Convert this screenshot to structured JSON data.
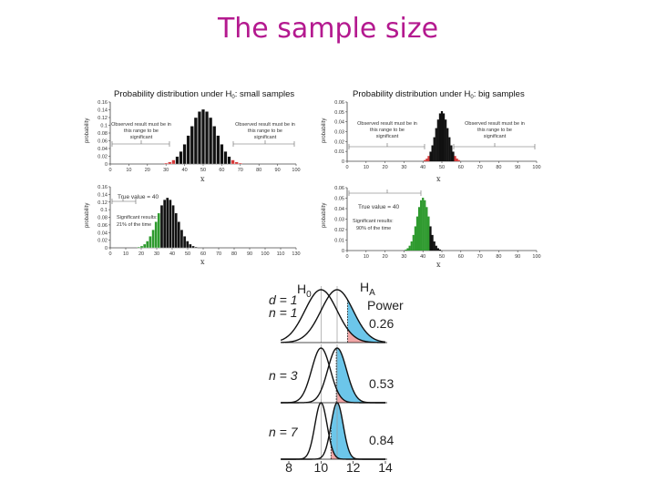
{
  "slide": {
    "title": "The sample size"
  },
  "panels": {
    "small": {
      "title": "Probability distribution under H",
      "title_sub": "0",
      "title_tail": ": small samples",
      "ylabel": "probability",
      "xlabel": "x",
      "yticks": [
        "0.16",
        "0.14",
        "0.12",
        "0.1",
        "0.08",
        "0.06",
        "0.04",
        "0.02",
        "0"
      ],
      "xticks": [
        "0",
        "10",
        "20",
        "30",
        "40",
        "50",
        "60",
        "70",
        "80",
        "90",
        "100"
      ],
      "left_note": [
        "Observed result must be in",
        "this range to be",
        "significant"
      ],
      "right_note": [
        "Observed result must be in",
        "this range to be",
        "significant"
      ]
    },
    "big": {
      "title": "Probability distribution under H",
      "title_sub": "0",
      "title_tail": ": big samples",
      "ylabel": "probability",
      "xlabel": "x",
      "yticks": [
        "0.06",
        "0.05",
        "0.04",
        "0.03",
        "0.02",
        "0.01",
        "0"
      ],
      "xticks": [
        "0",
        "10",
        "20",
        "30",
        "40",
        "50",
        "60",
        "70",
        "80",
        "90",
        "100"
      ],
      "left_note": [
        "Observed result must be in",
        "this range to be",
        "significant"
      ],
      "right_note": [
        "Observed result must be in",
        "this range to be",
        "significant"
      ]
    },
    "small_true": {
      "ylabel": "probability",
      "xlabel": "x",
      "yticks": [
        "0.16",
        "0.14",
        "0.12",
        "0.1",
        "0.08",
        "0.06",
        "0.04",
        "0.02",
        "0"
      ],
      "xticks": [
        "0",
        "10",
        "20",
        "30",
        "40",
        "50",
        "60",
        "70",
        "80",
        "90",
        "100",
        "110",
        "130"
      ],
      "true_value": "True value = 40",
      "sig_line1": "Significant results:",
      "sig_line2": "21% of the time"
    },
    "big_true": {
      "ylabel": "probability",
      "xlabel": "x",
      "yticks": [
        "0.06",
        "0.05",
        "0.04",
        "0.03",
        "0.02",
        "0.01",
        "0"
      ],
      "xticks": [
        "0",
        "10",
        "20",
        "30",
        "40",
        "50",
        "60",
        "70",
        "80",
        "90",
        "100"
      ],
      "true_value": "True value = 40",
      "sig_line1": "Significant results:",
      "sig_line2": "90% of the time"
    }
  },
  "power_diagram": {
    "h0": "H",
    "h0_sub": "0",
    "ha": "H",
    "ha_sub": "A",
    "power_label": "Power",
    "d_label": "d = 1",
    "rows": [
      {
        "n_label": "n = 1",
        "power": "0.26"
      },
      {
        "n_label": "n = 3",
        "power": "0.53"
      },
      {
        "n_label": "n = 7",
        "power": "0.84"
      }
    ],
    "xticks": [
      "8",
      "10",
      "12",
      "14"
    ]
  },
  "colors": {
    "title": "#b4198f",
    "bars": "#111111",
    "critical": "#d43a3a",
    "significant": "#2e9a2e",
    "power_fill": "#6cc6ea",
    "alpha_fill": "#f2a7a7"
  }
}
